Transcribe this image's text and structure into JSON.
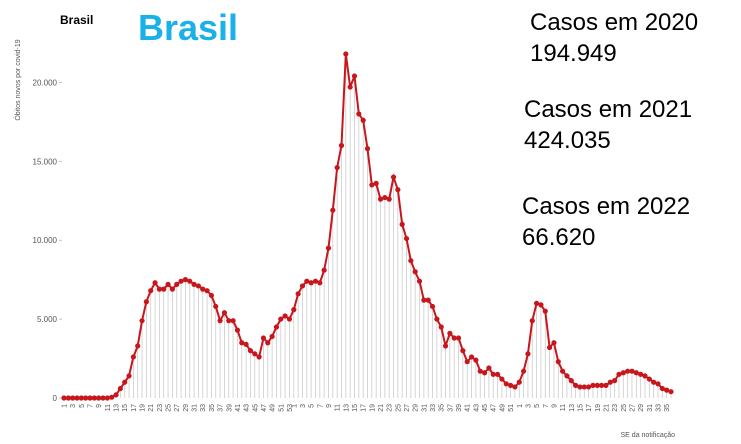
{
  "chart_data": {
    "type": "line",
    "small_title": "Brasil",
    "title": "Brasil",
    "y_label": "Óbitos novos por covid-19",
    "x_label": "SE da notificação",
    "annotations": [
      {
        "title": "Casos em 2020",
        "text": "194.949"
      },
      {
        "title": "Casos em 2021",
        "text": "424.035"
      },
      {
        "title": "Casos em 2022",
        "text": "66.620"
      }
    ],
    "categories": [
      "1",
      null,
      "3",
      null,
      "5",
      null,
      "7",
      null,
      "9",
      null,
      "11",
      null,
      "13",
      null,
      "15",
      null,
      "17",
      null,
      "19",
      null,
      "21",
      null,
      "23",
      null,
      "25",
      null,
      "27",
      null,
      "29",
      null,
      "31",
      null,
      "33",
      null,
      "35",
      null,
      "37",
      null,
      "39",
      null,
      "41",
      null,
      "43",
      null,
      "45",
      null,
      "47",
      null,
      "49",
      null,
      "51",
      null,
      "53",
      "1",
      null,
      "3",
      null,
      "5",
      null,
      "7",
      null,
      "9",
      null,
      "11",
      null,
      "13",
      null,
      "15",
      null,
      "17",
      null,
      "19",
      null,
      "21",
      null,
      "23",
      null,
      "25",
      null,
      "27",
      null,
      "29",
      null,
      "31",
      null,
      "33",
      null,
      "35",
      null,
      "37",
      null,
      "39",
      null,
      "41",
      null,
      "43",
      null,
      "45",
      null,
      "47",
      null,
      "49",
      null,
      "51",
      null,
      "1",
      null,
      "3",
      null,
      "5",
      null,
      "7",
      null,
      "9",
      null,
      "11",
      null,
      "13",
      null,
      "15",
      null,
      "17",
      null,
      "19",
      null,
      "21",
      null,
      "23",
      null,
      "25",
      null,
      "27",
      null,
      "29",
      null,
      "31",
      null,
      "33",
      null,
      "35",
      null
    ],
    "series": [
      {
        "name": "Óbitos novos",
        "color": "#c8161d",
        "values": [
          0,
          0,
          0,
          0,
          0,
          0,
          0,
          0,
          0,
          0,
          0,
          50,
          200,
          600,
          1000,
          1400,
          2600,
          3300,
          4900,
          6100,
          6800,
          7300,
          6900,
          6900,
          7200,
          6900,
          7200,
          7400,
          7500,
          7400,
          7200,
          7100,
          6900,
          6800,
          6500,
          5800,
          4900,
          5400,
          4900,
          4900,
          4300,
          3500,
          3400,
          3000,
          2800,
          2600,
          3800,
          3500,
          3900,
          4500,
          5000,
          5200,
          5000,
          5600,
          6600,
          7100,
          7400,
          7300,
          7400,
          7300,
          8100,
          9500,
          11900,
          14600,
          16000,
          21800,
          19700,
          20400,
          18000,
          17600,
          15800,
          13500,
          13600,
          12600,
          12700,
          12600,
          14000,
          13200,
          11000,
          10100,
          8700,
          8000,
          7400,
          6200,
          6200,
          5800,
          5000,
          4500,
          3300,
          4100,
          3800,
          3800,
          3000,
          2300,
          2600,
          2400,
          1700,
          1600,
          1900,
          1500,
          1500,
          1200,
          900,
          800,
          700,
          1000,
          1700,
          2800,
          4900,
          6000,
          5900,
          5500,
          3200,
          3500,
          2300,
          1700,
          1400,
          1100,
          800,
          700,
          700,
          700,
          800,
          800,
          800,
          800,
          1000,
          1100,
          1500,
          1600,
          1700,
          1700,
          1600,
          1500,
          1400,
          1200,
          1000,
          900,
          600,
          500,
          400
        ]
      }
    ],
    "ylim": [
      0,
      23000
    ],
    "yticks": [
      0,
      {
        "value": 5000,
        "label": "5.000"
      },
      {
        "value": 10000,
        "label": "10.000"
      },
      {
        "value": 15000,
        "label": "15.000"
      },
      {
        "value": 20000,
        "label": "20.000"
      }
    ],
    "stem_color": "#cccccc"
  }
}
